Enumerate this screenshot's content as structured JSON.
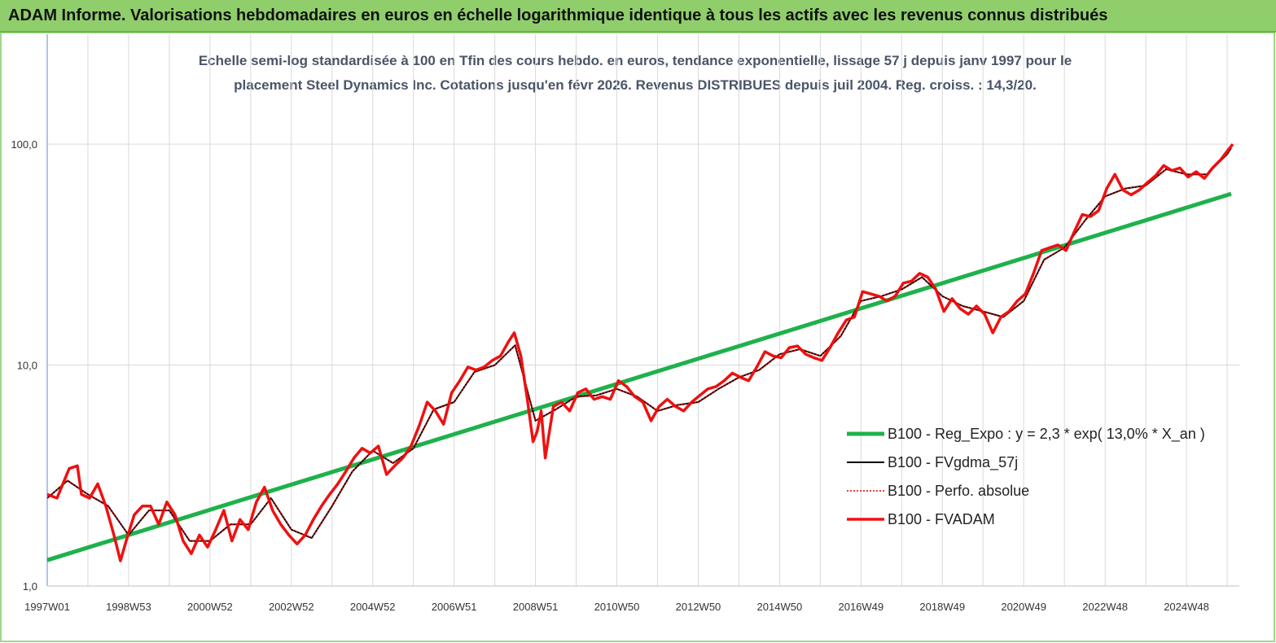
{
  "header": {
    "title": "ADAM Informe. Valorisations hebdomadaires en euros en échelle logarithmique identique à tous les actifs avec les revenus connus distribués"
  },
  "chart_data": {
    "type": "line",
    "subtitle": [
      "Echelle semi-log standardisée à 100 en Tfin des cours hebdo. en euros, tendance exponentielle, lissage 57 j depuis janv 1997 pour le",
      "placement Steel Dynamics Inc. Cotations jusqu'en févr 2026. Revenus DISTRIBUES depuis juil 2004. Reg. croiss. : 14,3/20."
    ],
    "ylog": true,
    "ylim": [
      1,
      320
    ],
    "yticks": [
      {
        "value": 1,
        "label": "1,0"
      },
      {
        "value": 10,
        "label": "10,0"
      },
      {
        "value": 100,
        "label": "100,0"
      }
    ],
    "xlim": [
      1997,
      2026.3
    ],
    "xticks": [
      {
        "value": 1997,
        "label": "1997W01"
      },
      {
        "value": 1999,
        "label": "1998W53"
      },
      {
        "value": 2001,
        "label": "2000W52"
      },
      {
        "value": 2003,
        "label": "2002W52"
      },
      {
        "value": 2005,
        "label": "2004W52"
      },
      {
        "value": 2007,
        "label": "2006W51"
      },
      {
        "value": 2009,
        "label": "2008W51"
      },
      {
        "value": 2011,
        "label": "2010W50"
      },
      {
        "value": 2013,
        "label": "2012W50"
      },
      {
        "value": 2015,
        "label": "2014W50"
      },
      {
        "value": 2017,
        "label": "2016W49"
      },
      {
        "value": 2019,
        "label": "2018W49"
      },
      {
        "value": 2021,
        "label": "2020W49"
      },
      {
        "value": 2023,
        "label": "2022W48"
      },
      {
        "value": 2025,
        "label": "2024W48"
      }
    ],
    "x_minor_grid": [
      1998,
      2000,
      2002,
      2004,
      2006,
      2008,
      2010,
      2012,
      2014,
      2016,
      2018,
      2020,
      2022,
      2024,
      2026
    ],
    "grid": true,
    "legend": "right",
    "series": [
      {
        "name": "B100 - Reg_Expo : y = 2,3 * exp( 13,0% *  X_an )",
        "color": "#1fb14b",
        "width": 5,
        "x": [
          1997,
          2026.1
        ],
        "values": [
          1.31,
          59.6
        ]
      },
      {
        "name": "B100 - FVgdma_57j",
        "color": "#000000",
        "width": 2,
        "x": [
          1997,
          1997.5,
          1998,
          1998.5,
          1999,
          1999.5,
          2000,
          2000.5,
          2001,
          2001.5,
          2002,
          2002.5,
          2003,
          2003.5,
          2004,
          2004.5,
          2005,
          2005.5,
          2006,
          2006.5,
          2007,
          2007.5,
          2008,
          2008.5,
          2009,
          2009.5,
          2010,
          2010.5,
          2011,
          2011.5,
          2012,
          2012.5,
          2013,
          2013.5,
          2014,
          2014.5,
          2015,
          2015.5,
          2016,
          2016.5,
          2017,
          2017.5,
          2018,
          2018.5,
          2019,
          2019.5,
          2020,
          2020.5,
          2021,
          2021.5,
          2022,
          2022.5,
          2023,
          2023.5,
          2024,
          2024.5,
          2025,
          2025.5,
          2026,
          2026.1
        ],
        "values": [
          2.5,
          3.0,
          2.6,
          2.3,
          1.7,
          2.2,
          2.2,
          1.6,
          1.6,
          1.9,
          1.9,
          2.5,
          1.8,
          1.65,
          2.3,
          3.3,
          4.1,
          3.6,
          4.2,
          6.3,
          6.8,
          9.3,
          10.0,
          12.3,
          5.6,
          6.3,
          7.2,
          7.3,
          7.8,
          7.2,
          6.2,
          6.6,
          6.8,
          7.8,
          8.8,
          9.5,
          11.2,
          11.8,
          11.0,
          13.5,
          19.5,
          20.5,
          22.0,
          25.0,
          20.5,
          18.5,
          17.5,
          16.5,
          19.5,
          30.0,
          34.0,
          45.0,
          58.0,
          63.0,
          65.0,
          77.0,
          73.0,
          73.0,
          90.0,
          96.0
        ]
      },
      {
        "name": "B100 - Perfo. absolue",
        "color": "#e00000",
        "width": 1.5,
        "dash": "2,2",
        "x": [
          1997,
          1997.5,
          1998,
          1998.5,
          1999,
          1999.5,
          2000,
          2000.5,
          2001,
          2001.5,
          2002,
          2002.5,
          2003,
          2003.5,
          2004,
          2004.5,
          2005,
          2005.5,
          2006,
          2006.5,
          2007,
          2007.5,
          2008,
          2008.5,
          2009,
          2009.5,
          2010,
          2010.5,
          2011,
          2011.5,
          2012,
          2012.5,
          2013,
          2013.5,
          2014,
          2014.5,
          2015,
          2015.5,
          2016,
          2016.5,
          2017,
          2017.5,
          2018,
          2018.5,
          2019,
          2019.5,
          2020,
          2020.5,
          2021,
          2021.5,
          2022,
          2022.5,
          2023,
          2023.5,
          2024,
          2024.5,
          2025,
          2025.5,
          2026,
          2026.1
        ],
        "values": [
          2.5,
          3.0,
          2.6,
          2.3,
          1.7,
          2.2,
          2.2,
          1.6,
          1.6,
          1.9,
          1.9,
          2.5,
          1.8,
          1.65,
          2.3,
          3.3,
          4.1,
          3.6,
          4.2,
          6.3,
          6.8,
          9.3,
          10.0,
          12.3,
          5.6,
          6.3,
          7.2,
          7.3,
          7.8,
          7.2,
          6.2,
          6.6,
          6.8,
          7.8,
          8.8,
          9.5,
          11.2,
          11.8,
          11.0,
          13.5,
          19.5,
          20.5,
          22.0,
          25.0,
          20.5,
          18.5,
          17.5,
          16.5,
          19.5,
          30.0,
          34.0,
          45.0,
          58.0,
          63.0,
          65.0,
          77.0,
          73.0,
          73.0,
          90.0,
          96.0
        ]
      },
      {
        "name": "B100 - FVADAM",
        "color": "#ee1111",
        "width": 3.5,
        "x": [
          1997.0,
          1997.24,
          1997.54,
          1997.74,
          1997.84,
          1998.04,
          1998.24,
          1998.44,
          1998.64,
          1998.8,
          1998.94,
          1999.14,
          1999.34,
          1999.54,
          1999.74,
          1999.94,
          2000.14,
          2000.34,
          2000.54,
          2000.74,
          2000.94,
          2001.14,
          2001.34,
          2001.54,
          2001.74,
          2001.94,
          2002.14,
          2002.34,
          2002.54,
          2002.74,
          2002.94,
          2003.14,
          2003.34,
          2003.54,
          2003.74,
          2003.94,
          2004.14,
          2004.34,
          2004.54,
          2004.74,
          2004.94,
          2005.14,
          2005.34,
          2005.54,
          2005.74,
          2005.94,
          2006.14,
          2006.34,
          2006.54,
          2006.74,
          2006.94,
          2007.14,
          2007.34,
          2007.54,
          2007.74,
          2007.94,
          2008.14,
          2008.34,
          2008.48,
          2008.64,
          2008.8,
          2008.94,
          2009.04,
          2009.14,
          2009.24,
          2009.44,
          2009.64,
          2009.84,
          2010.04,
          2010.24,
          2010.44,
          2010.64,
          2010.84,
          2011.04,
          2011.24,
          2011.44,
          2011.64,
          2011.84,
          2012.04,
          2012.24,
          2012.44,
          2012.64,
          2012.84,
          2013.04,
          2013.24,
          2013.44,
          2013.64,
          2013.84,
          2014.04,
          2014.24,
          2014.44,
          2014.64,
          2014.84,
          2015.04,
          2015.24,
          2015.44,
          2015.64,
          2015.84,
          2016.04,
          2016.24,
          2016.44,
          2016.64,
          2016.84,
          2017.04,
          2017.24,
          2017.44,
          2017.64,
          2017.84,
          2018.04,
          2018.24,
          2018.44,
          2018.64,
          2018.84,
          2019.04,
          2019.24,
          2019.44,
          2019.64,
          2019.84,
          2020.04,
          2020.24,
          2020.44,
          2020.64,
          2020.84,
          2021.04,
          2021.24,
          2021.44,
          2021.64,
          2021.84,
          2022.04,
          2022.24,
          2022.44,
          2022.64,
          2022.84,
          2023.04,
          2023.24,
          2023.44,
          2023.64,
          2023.84,
          2024.04,
          2024.24,
          2024.44,
          2024.64,
          2024.84,
          2025.04,
          2025.24,
          2025.44,
          2025.64,
          2025.84,
          2026.04,
          2026.14
        ],
        "values": [
          2.6,
          2.5,
          3.4,
          3.5,
          2.6,
          2.5,
          2.9,
          2.3,
          1.7,
          1.3,
          1.6,
          2.1,
          2.3,
          2.3,
          1.9,
          2.4,
          2.1,
          1.6,
          1.4,
          1.7,
          1.5,
          1.8,
          2.2,
          1.6,
          2.0,
          1.8,
          2.4,
          2.8,
          2.2,
          1.9,
          1.7,
          1.55,
          1.7,
          2.0,
          2.3,
          2.6,
          2.9,
          3.3,
          3.8,
          4.2,
          4.0,
          4.3,
          3.2,
          3.5,
          3.8,
          4.3,
          5.3,
          6.8,
          6.2,
          5.4,
          7.5,
          8.5,
          9.8,
          9.5,
          9.8,
          10.5,
          11,
          12.8,
          14,
          11,
          7,
          4.5,
          5.0,
          6.2,
          3.8,
          6.5,
          6.8,
          6.2,
          7.5,
          7.8,
          7.0,
          7.2,
          7.0,
          8.5,
          8.0,
          7.2,
          6.8,
          5.6,
          6.5,
          7.0,
          6.5,
          6.2,
          6.8,
          7.3,
          7.8,
          8.0,
          8.5,
          9.2,
          8.8,
          8.5,
          9.8,
          11.5,
          11.0,
          10.8,
          12.0,
          12.2,
          11.2,
          10.8,
          10.5,
          12.0,
          14.0,
          16.0,
          16.5,
          21.5,
          21.0,
          20.5,
          19.5,
          20.5,
          23.5,
          24,
          26,
          25,
          22,
          17.5,
          20,
          18,
          17,
          18.5,
          17,
          14,
          16.5,
          17.5,
          19.5,
          21,
          26,
          33,
          34,
          35,
          33,
          40,
          48,
          47,
          50,
          63,
          73,
          62,
          59,
          62,
          67,
          72,
          80,
          76,
          78,
          71,
          75,
          70,
          78,
          85,
          95,
          100
        ]
      }
    ]
  }
}
